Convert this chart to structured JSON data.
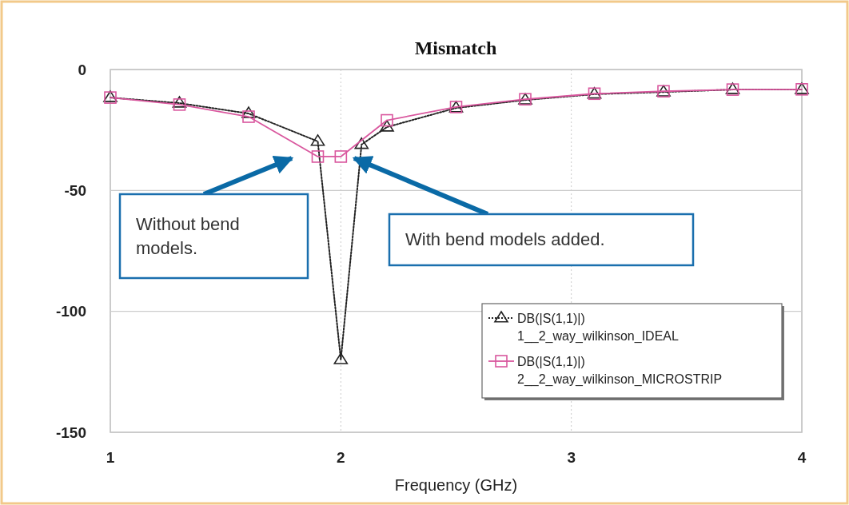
{
  "chart_data": {
    "type": "line",
    "title": "Mismatch",
    "xlabel": "Frequency (GHz)",
    "xlim": [
      1,
      4
    ],
    "xticks": [
      1,
      2,
      3,
      4
    ],
    "ylim": [
      -150,
      0
    ],
    "yticks": [
      0,
      -50,
      -100,
      -150
    ],
    "grid": true,
    "legend": "bottom right",
    "series": [
      {
        "name": "DB(|S(1,1)|)\n1__2_way_wilkinson_IDEAL",
        "color": "#222222",
        "marker": "triangle",
        "line_style": "dotted",
        "x": [
          1,
          1.3,
          1.6,
          1.9,
          2.0,
          2.09,
          2.2,
          2.5,
          2.8,
          3.1,
          3.4,
          3.7,
          4
        ],
        "values": [
          -11.6,
          -13.9,
          -18.2,
          -29.7,
          -120,
          -31,
          -23.8,
          -15.9,
          -12.6,
          -10.2,
          -9.3,
          -8.3,
          -8.3
        ]
      },
      {
        "name": "DB(|S(1,1)|)\n2__2_way_wilkinson_MICROSTRIP",
        "color": "#d9579e",
        "marker": "square",
        "line_style": "solid",
        "x": [
          1,
          1.3,
          1.6,
          1.9,
          2.0,
          2.2,
          2.5,
          2.8,
          3.1,
          3.4,
          3.7,
          4
        ],
        "values": [
          -11.6,
          -14.5,
          -19.5,
          -36,
          -36,
          -21,
          -15.5,
          -12.3,
          -10,
          -9,
          -8.3,
          -8.2
        ]
      }
    ],
    "annotations": [
      "Without bend models.",
      "With bend models added."
    ]
  }
}
